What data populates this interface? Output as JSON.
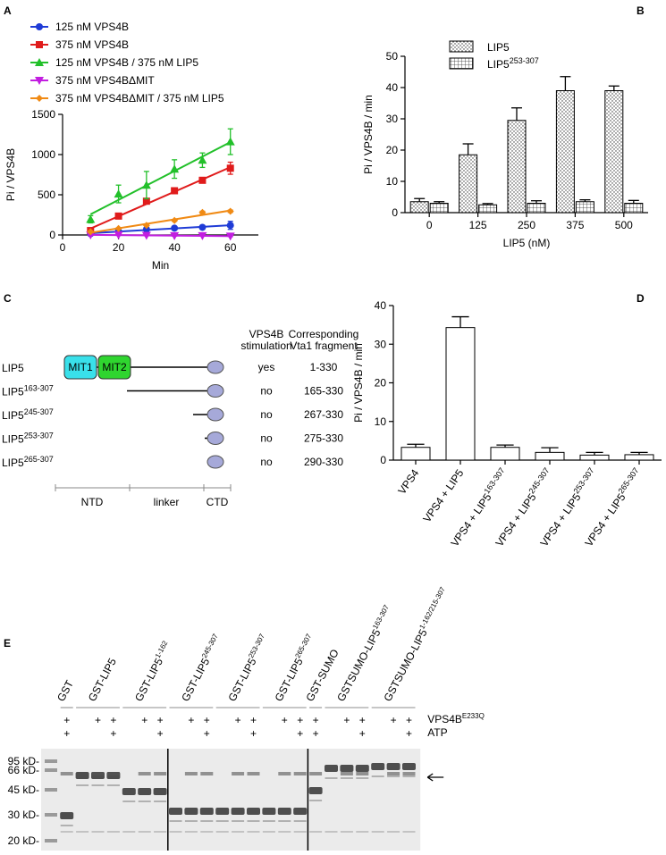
{
  "panel_labels": [
    "A",
    "B",
    "C",
    "D",
    "E"
  ],
  "chart_data": [
    {
      "type": "line",
      "xlabel": "Min",
      "ylabel": "Pi / VPS4B",
      "x": [
        10,
        20,
        30,
        40,
        50,
        60
      ],
      "xlim": [
        0,
        70
      ],
      "xticks": [
        0,
        20,
        40,
        60
      ],
      "ylim": [
        0,
        1500
      ],
      "yticks": [
        0,
        500,
        1000,
        1500
      ],
      "fit": "linear",
      "series": [
        {
          "name": "125 nM VPS4B",
          "color": "#1f3bd6",
          "marker": "circle",
          "values": [
            15,
            45,
            70,
            85,
            95,
            120
          ],
          "errors": [
            10,
            15,
            20,
            15,
            20,
            50
          ]
        },
        {
          "name": "375 nM VPS4B",
          "color": "#e01b1b",
          "marker": "square",
          "values": [
            55,
            235,
            420,
            550,
            680,
            830
          ],
          "errors": [
            20,
            25,
            20,
            20,
            25,
            75
          ]
        },
        {
          "name": "125 nM VPS4B / 375 nM LIP5",
          "color": "#22c02a",
          "marker": "triangle",
          "values": [
            195,
            510,
            620,
            820,
            930,
            1160
          ],
          "errors": [
            45,
            110,
            170,
            115,
            90,
            160
          ]
        },
        {
          "name": "375 nM VPS4BΔMIT",
          "color": "#c21ee0",
          "marker": "triangle-down",
          "values": [
            0,
            0,
            -5,
            -10,
            -10,
            -15
          ],
          "errors": [
            5,
            5,
            5,
            5,
            5,
            5
          ]
        },
        {
          "name": "375 nM VPS4BΔMIT / 375 nM LIP5",
          "color": "#f08a14",
          "marker": "diamond",
          "values": [
            40,
            80,
            120,
            180,
            280,
            295
          ],
          "errors": [
            10,
            10,
            10,
            10,
            15,
            15
          ]
        }
      ]
    },
    {
      "type": "bar",
      "xlabel": "LIP5 (nM)",
      "ylabel": "Pi / VPS4B / min",
      "categories": [
        "0",
        "125",
        "250",
        "375",
        "500"
      ],
      "ylim": [
        0,
        50
      ],
      "yticks": [
        0,
        10,
        20,
        30,
        40,
        50
      ],
      "series": [
        {
          "name": "LIP5",
          "name_superscript": null,
          "pattern": "dots",
          "color": "#ffffff",
          "values": [
            3.5,
            18.5,
            29.5,
            39,
            39
          ],
          "errors": [
            1,
            3.5,
            4,
            4.5,
            1.5
          ]
        },
        {
          "name": "LIP5",
          "name_superscript": "253-307",
          "pattern": "grid",
          "color": "#ffffff",
          "values": [
            3,
            2.5,
            3,
            3.5,
            3
          ],
          "errors": [
            0.5,
            0.4,
            0.8,
            0.6,
            0.9
          ]
        }
      ]
    },
    {
      "type": "bar",
      "ylabel": "Pi / VPS4B / min",
      "categories": [
        "VPS4",
        "VPS4 + LIP5",
        "VPS4 + LIP5",
        "VPS4 + LIP5",
        "VPS4 + LIP5",
        "VPS4 + LIP5"
      ],
      "category_superscripts": [
        null,
        null,
        "163-307",
        "245-307",
        "253-307",
        "265-307"
      ],
      "ylim": [
        0,
        40
      ],
      "yticks": [
        0,
        10,
        20,
        30,
        40
      ],
      "color": "#ffffff",
      "series": [
        {
          "values": [
            3.3,
            34.3,
            3.3,
            2,
            1.3,
            1.4
          ],
          "errors": [
            0.8,
            2.8,
            0.6,
            1.2,
            0.7,
            0.6
          ]
        }
      ]
    }
  ],
  "diagram": {
    "stimulation_header": [
      "VPS4B",
      "stimulation"
    ],
    "fragment_header": [
      "Corresponding",
      "Vta1 fragment"
    ],
    "domains": [
      "MIT1",
      "MIT2"
    ],
    "regions": [
      "NTD",
      "linker",
      "CTD"
    ],
    "rows": [
      {
        "name": "LIP5",
        "superscript": null,
        "stimulation": "yes",
        "fragment": "1-330"
      },
      {
        "name": "LIP5",
        "superscript": "163-307",
        "stimulation": "no",
        "fragment": "165-330"
      },
      {
        "name": "LIP5",
        "superscript": "245-307",
        "stimulation": "no",
        "fragment": "267-330"
      },
      {
        "name": "LIP5",
        "superscript": "253-307",
        "stimulation": "no",
        "fragment": "275-330"
      },
      {
        "name": "LIP5",
        "superscript": "265-307",
        "stimulation": "no",
        "fragment": "290-330"
      }
    ]
  },
  "gel": {
    "groups": [
      {
        "label": "GST",
        "superscript": null
      },
      {
        "label": "GST-LIP5",
        "superscript": null
      },
      {
        "label": "GST-LIP5",
        "superscript": "1-162"
      },
      {
        "label": "GST-LIP5",
        "superscript": "245-307"
      },
      {
        "label": "GST-LIP5",
        "superscript": "253-307"
      },
      {
        "label": "GST-LIP5",
        "superscript": "265-307"
      },
      {
        "label": "GST-SUMO",
        "superscript": null
      },
      {
        "label": "GSTSUMO-LIP5",
        "superscript": "163-307"
      },
      {
        "label": "GSTSUMO-LIP5",
        "superscript": "1-162/215-307"
      }
    ],
    "rows": [
      {
        "name": "VPS4B",
        "superscript": "E233Q",
        "marks": [
          [
            "+"
          ],
          [
            null,
            "+",
            "+"
          ],
          [
            null,
            "+",
            "+"
          ],
          [
            null,
            "+",
            "+"
          ],
          [
            null,
            "+",
            "+"
          ],
          [
            null,
            "+",
            "+"
          ],
          [
            "+"
          ],
          [
            null,
            "+",
            "+"
          ],
          [
            null,
            "+",
            "+"
          ]
        ]
      },
      {
        "name": "ATP",
        "superscript": null,
        "marks": [
          [
            "+"
          ],
          [
            null,
            null,
            "+"
          ],
          [
            null,
            null,
            "+"
          ],
          [
            null,
            null,
            "+"
          ],
          [
            null,
            null,
            "+"
          ],
          [
            null,
            null,
            "+"
          ],
          [
            "+"
          ],
          [
            null,
            null,
            "+"
          ],
          [
            null,
            null,
            "+"
          ]
        ]
      }
    ],
    "size_markers": [
      "95 kD-",
      "66 kD-",
      "45 kD-",
      "30 kD-",
      "20 kD-"
    ]
  }
}
